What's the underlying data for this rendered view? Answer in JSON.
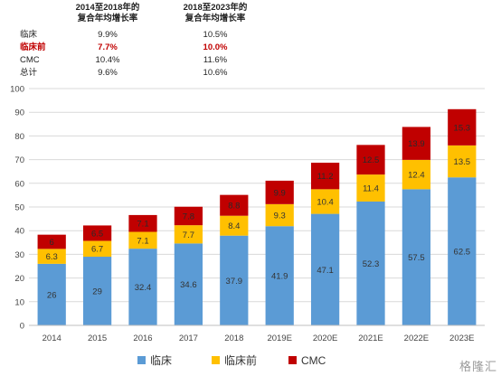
{
  "cagr_table": {
    "headers": [
      "2014至2018年的\n复合年均增长率",
      "2018至2023年的\n复合年均增长率"
    ],
    "rows": [
      {
        "label": "临床",
        "v1": "9.9%",
        "v2": "10.5%",
        "highlight": false
      },
      {
        "label": "临床前",
        "v1": "7.7%",
        "v2": "10.0%",
        "highlight": true
      },
      {
        "label": "CMC",
        "v1": "10.4%",
        "v2": "11.6%",
        "highlight": false
      },
      {
        "label": "总计",
        "v1": "9.6%",
        "v2": "10.6%",
        "highlight": false
      }
    ]
  },
  "chart_data": {
    "type": "bar",
    "stacked": true,
    "categories": [
      "2014",
      "2015",
      "2016",
      "2017",
      "2018",
      "2019E",
      "2020E",
      "2021E",
      "2022E",
      "2023E"
    ],
    "series": [
      {
        "name": "临床",
        "color": "#5b9bd5",
        "values": [
          26,
          29,
          32.4,
          34.6,
          37.9,
          41.9,
          47.1,
          52.3,
          57.5,
          62.5
        ]
      },
      {
        "name": "临床前",
        "color": "#ffc000",
        "values": [
          6.3,
          6.7,
          7.1,
          7.7,
          8.4,
          9.3,
          10.4,
          11.4,
          12.4,
          13.5
        ]
      },
      {
        "name": "CMC",
        "color": "#c00000",
        "values": [
          6,
          6.5,
          7.1,
          7.8,
          8.8,
          9.9,
          11.2,
          12.5,
          13.9,
          15.3
        ]
      }
    ],
    "ylim": [
      0,
      100
    ],
    "yticks": [
      0,
      10,
      20,
      30,
      40,
      50,
      60,
      70,
      80,
      90,
      100
    ],
    "grid": true,
    "legend": "bottom"
  },
  "watermark": "格隆汇"
}
